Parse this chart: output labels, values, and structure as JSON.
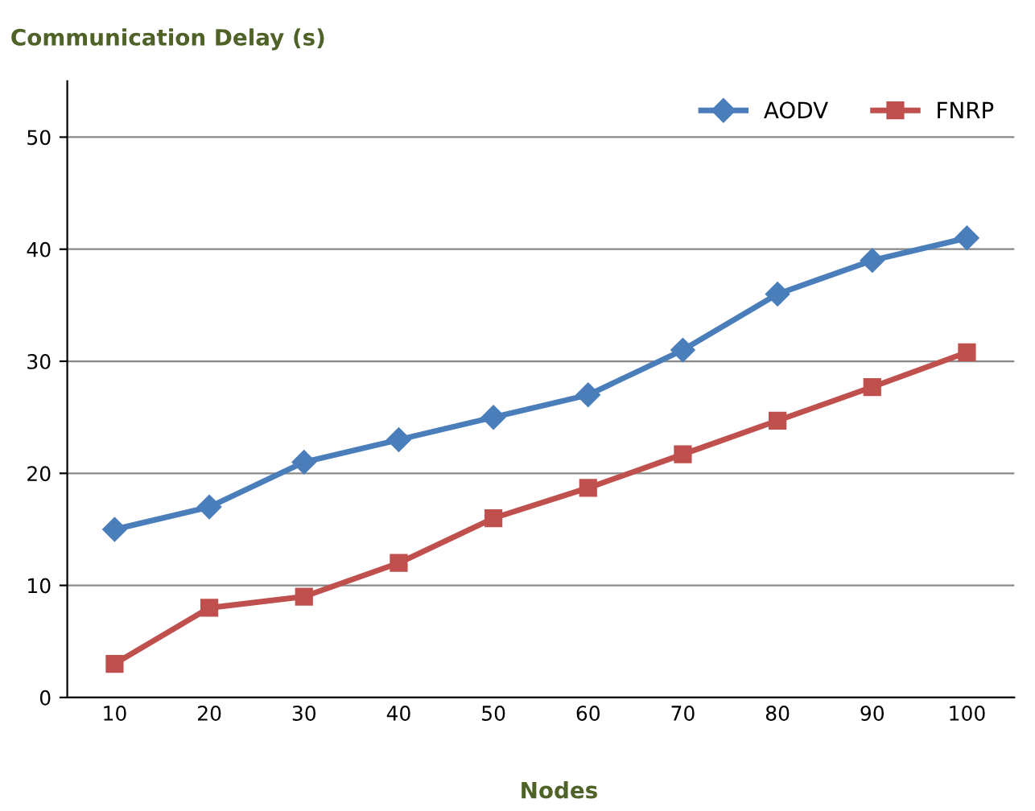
{
  "chart_data": {
    "type": "line",
    "title": "Communication Delay (s)",
    "xlabel": "Nodes",
    "categories": [
      "10",
      "20",
      "30",
      "40",
      "50",
      "60",
      "70",
      "80",
      "90",
      "100"
    ],
    "series": [
      {
        "name": "AODV",
        "color": "#4a7ebb",
        "values": [
          15,
          17,
          21,
          23,
          25,
          27,
          31,
          36,
          39,
          41
        ],
        "marker": "diamond"
      },
      {
        "name": "FNRP",
        "color": "#c0504d",
        "values": [
          3,
          8,
          9,
          12,
          16,
          18.7,
          21.7,
          24.7,
          27.7,
          30.8
        ],
        "marker": "square"
      }
    ],
    "ylim": [
      0,
      55
    ],
    "yticks": [
      0,
      10,
      20,
      30,
      40,
      50
    ],
    "grid": "y",
    "legend": "top right",
    "line_style": "solid"
  }
}
